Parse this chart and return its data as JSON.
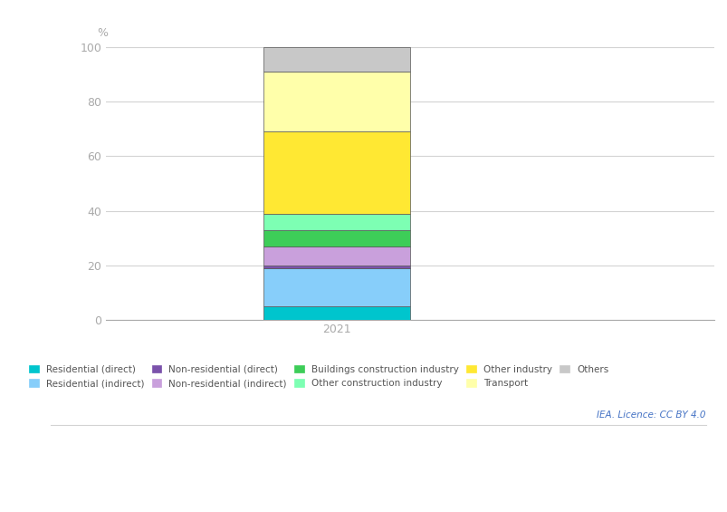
{
  "categories": [
    "2021"
  ],
  "segments": [
    {
      "label": "Residential (direct)",
      "value": 5,
      "color": "#00C5CD"
    },
    {
      "label": "Residential (indirect)",
      "value": 14,
      "color": "#87CEFA"
    },
    {
      "label": "Non-residential (direct)",
      "value": 1,
      "color": "#7B52AB"
    },
    {
      "label": "Non-residential (indirect)",
      "value": 7,
      "color": "#C9A0DC"
    },
    {
      "label": "Buildings construction industry",
      "value": 6,
      "color": "#3DCD58"
    },
    {
      "label": "Other construction industry",
      "value": 6,
      "color": "#7DFFB3"
    },
    {
      "label": "Other industry",
      "value": 30,
      "color": "#FFE833"
    },
    {
      "label": "Transport",
      "value": 22,
      "color": "#FFFFAA"
    },
    {
      "label": "Others",
      "value": 9,
      "color": "#C8C8C8"
    }
  ],
  "ylabel": "%",
  "ylim": [
    0,
    100
  ],
  "yticks": [
    0,
    20,
    40,
    60,
    80,
    100
  ],
  "background_color": "#ffffff",
  "grid_color": "#d3d3d3",
  "bar_width": 0.35,
  "bar_edge_color": "#555555",
  "bar_edge_width": 0.5,
  "tick_color": "#aaaaaa",
  "axis_color": "#aaaaaa",
  "legend_fontsize": 7.5,
  "ylabel_fontsize": 9,
  "ytick_fontsize": 9,
  "xtick_fontsize": 9,
  "credit_text": "IEA. Licence: CC BY 4.0",
  "credit_color": "#4472C4",
  "credit_fontsize": 7.5,
  "legend_rows": [
    [
      "Residential (direct)",
      "Residential (indirect)",
      "Non-residential (direct)",
      "Non-residential (indirect)",
      "Buildings construction industry"
    ],
    [
      "Other construction industry",
      "Other industry",
      "Transport",
      "Others"
    ]
  ]
}
